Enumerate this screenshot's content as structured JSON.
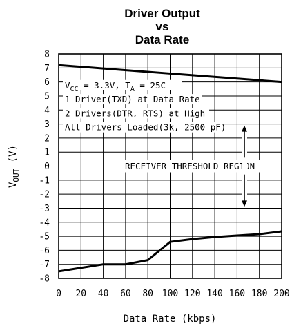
{
  "chart_data": {
    "type": "line",
    "title_lines": [
      "Driver Output",
      "vs",
      "Data Rate"
    ],
    "xlabel": "Data Rate (kbps)",
    "ylabel_main": "V",
    "ylabel_sub": "OUT",
    "ylabel_unit": "(V)",
    "xlim": [
      0,
      200
    ],
    "ylim": [
      -8,
      8
    ],
    "x_ticks": [
      0,
      20,
      40,
      60,
      80,
      100,
      120,
      140,
      160,
      180,
      200
    ],
    "x_tick_labels": [
      "0",
      "20",
      "40",
      "60",
      "80",
      "100",
      "120",
      "140",
      "160",
      "180",
      "200"
    ],
    "y_ticks": [
      8,
      7,
      6,
      5,
      4,
      3,
      2,
      1,
      0,
      -1,
      -2,
      -3,
      -4,
      -5,
      -6,
      -7,
      -8
    ],
    "y_tick_labels": [
      "8",
      "7",
      "6",
      "5",
      "4",
      "3",
      "2",
      "1",
      "0",
      "-1",
      "-2",
      "-3",
      "-4",
      "-5",
      "-6",
      "-7",
      "-8"
    ],
    "grid": true,
    "series": [
      {
        "x": [
          0,
          50,
          100,
          150,
          200
        ],
        "y": [
          7.2,
          6.9,
          6.6,
          6.3,
          6.0
        ]
      },
      {
        "x": [
          0,
          20,
          40,
          60,
          80,
          100,
          120,
          140,
          160,
          180,
          200
        ],
        "y": [
          -7.5,
          -7.25,
          -7.0,
          -7.0,
          -6.7,
          -5.4,
          -5.2,
          -5.05,
          -4.95,
          -4.85,
          -4.65
        ]
      }
    ],
    "annotations": {
      "vcc_line": {
        "prefix": "V",
        "sub": "CC",
        "mid": " = 3.3V, T",
        "sub2": "A",
        "suffix": " = 25C"
      },
      "lines": [
        "1 Driver(TXD) at Data Rate",
        "2 Drivers(DTR, RTS) at High",
        "All Drivers Loaded(3k, 2500 pF)"
      ],
      "region_label": "RECEIVER THRESHOLD REGION"
    }
  }
}
